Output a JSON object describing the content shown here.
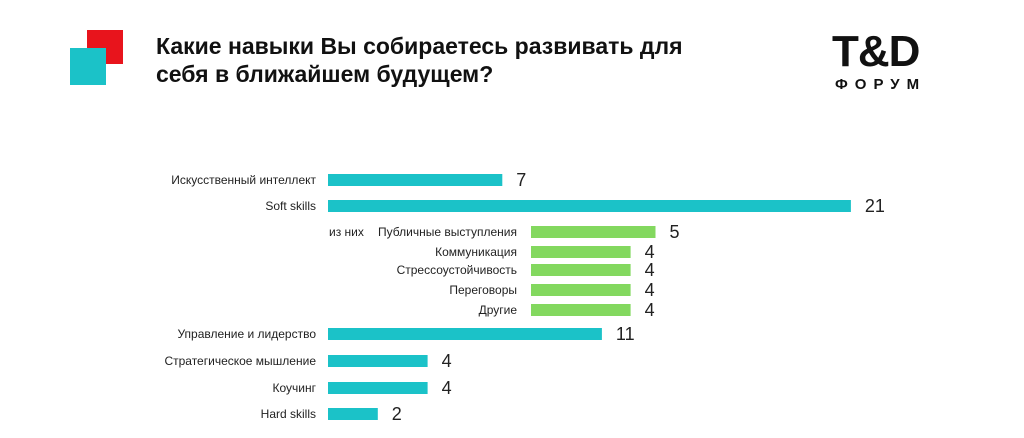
{
  "title": "Какие навыки Вы собираетесь развивать для себя в ближайшем будущем?",
  "logo": {
    "main": "T&D",
    "sub": "ФОРУМ"
  },
  "colors": {
    "primary": "#1bc2c8",
    "sub": "#83d85f",
    "accent_red": "#e8141c"
  },
  "chart_data": {
    "type": "bar",
    "orientation": "horizontal",
    "sub_group_label": "из них",
    "bars": [
      {
        "label": "Искусственный интеллект",
        "value": 7,
        "group": "main"
      },
      {
        "label": "Soft skills",
        "value": 21,
        "group": "main"
      },
      {
        "label": "Публичные выступления",
        "value": 5,
        "group": "sub"
      },
      {
        "label": "Коммуникация",
        "value": 4,
        "group": "sub"
      },
      {
        "label": "Стрессоустойчивость",
        "value": 4,
        "group": "sub"
      },
      {
        "label": "Переговоры",
        "value": 4,
        "group": "sub"
      },
      {
        "label": "Другие",
        "value": 4,
        "group": "sub"
      },
      {
        "label": "Управление и лидерство",
        "value": 11,
        "group": "main"
      },
      {
        "label": "Стратегическое мышление",
        "value": 4,
        "group": "main"
      },
      {
        "label": "Коучинг",
        "value": 4,
        "group": "main"
      },
      {
        "label": "Hard skills",
        "value": 2,
        "group": "main"
      }
    ]
  }
}
